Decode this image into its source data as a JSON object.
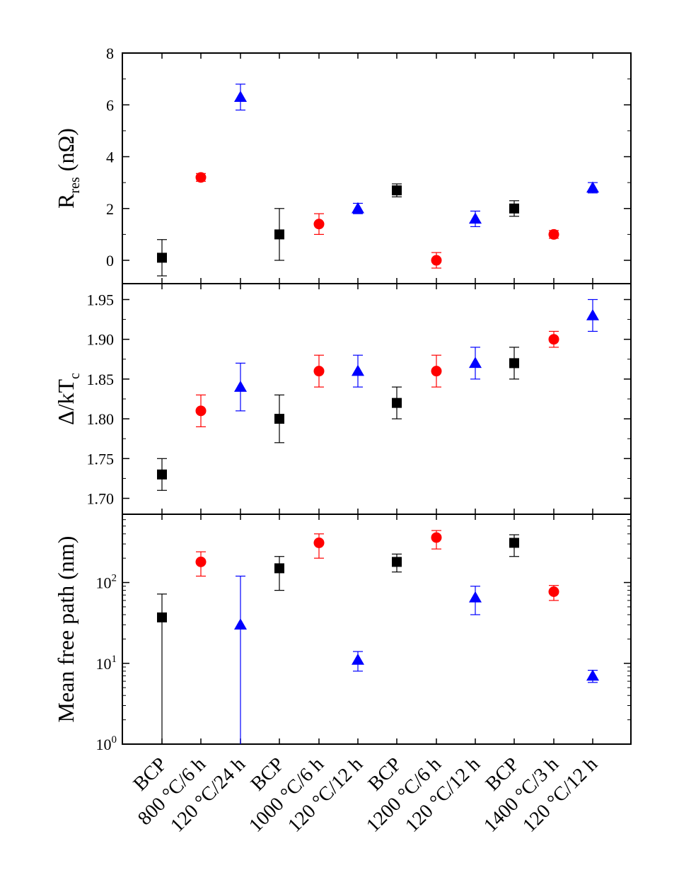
{
  "chart_data": {
    "type": "scatter",
    "categories": [
      "BCP",
      "800 °C/6 h",
      "120 °C/24 h",
      "BCP",
      "1000 °C/6 h",
      "120 °C/12 h",
      "BCP",
      "1200 °C/6 h",
      "120 °C/12 h",
      "BCP",
      "1400 °C/3 h",
      "120 °C/12 h"
    ],
    "marker_colors": {
      "square": "#000000",
      "circle": "#ff0000",
      "triangle": "#0000ff"
    },
    "markers": [
      "square",
      "circle",
      "triangle",
      "square",
      "circle",
      "triangle",
      "square",
      "circle",
      "triangle",
      "square",
      "circle",
      "triangle"
    ],
    "panels": [
      {
        "id": "rres",
        "ylabel_main": "R",
        "ylabel_sub": "res",
        "ylabel_tail": " (nΩ)",
        "scale": "linear",
        "ylim": [
          -0.9,
          8
        ],
        "yticks": [
          0,
          2,
          4,
          6,
          8
        ],
        "ytick_labels": [
          "0",
          "2",
          "4",
          "6",
          "8"
        ],
        "values": [
          0.1,
          3.2,
          6.3,
          1.0,
          1.4,
          2.0,
          2.7,
          0.0,
          1.6,
          2.0,
          1.0,
          2.8
        ],
        "err_low": [
          0.7,
          0.15,
          0.5,
          1.0,
          0.4,
          0.2,
          0.25,
          0.3,
          0.3,
          0.3,
          0.15,
          0.2
        ],
        "err_high": [
          0.7,
          0.15,
          0.5,
          1.0,
          0.4,
          0.2,
          0.25,
          0.3,
          0.3,
          0.3,
          0.15,
          0.2
        ]
      },
      {
        "id": "gap",
        "ylabel_main": "Δ/kT",
        "ylabel_sub": "c",
        "ylabel_tail": "",
        "scale": "linear",
        "ylim": [
          1.68,
          1.97
        ],
        "yticks": [
          1.7,
          1.75,
          1.8,
          1.85,
          1.9,
          1.95
        ],
        "ytick_labels": [
          "1.70",
          "1.75",
          "1.80",
          "1.85",
          "1.90",
          "1.95"
        ],
        "values": [
          1.73,
          1.81,
          1.84,
          1.8,
          1.86,
          1.86,
          1.82,
          1.86,
          1.87,
          1.87,
          1.9,
          1.93
        ],
        "err_low": [
          0.02,
          0.02,
          0.03,
          0.03,
          0.02,
          0.02,
          0.02,
          0.02,
          0.02,
          0.02,
          0.01,
          0.02
        ],
        "err_high": [
          0.02,
          0.02,
          0.03,
          0.03,
          0.02,
          0.02,
          0.02,
          0.02,
          0.02,
          0.02,
          0.01,
          0.02
        ]
      },
      {
        "id": "mfp",
        "ylabel_main": "Mean free path (nm)",
        "ylabel_sub": "",
        "ylabel_tail": "",
        "scale": "log",
        "ylim": [
          1,
          700
        ],
        "yticks": [
          1,
          10,
          100
        ],
        "ytick_labels": [
          "10",
          "10",
          "10"
        ],
        "ytick_exponents": [
          "0",
          "1",
          "2"
        ],
        "values": [
          37,
          180,
          30,
          150,
          310,
          11,
          180,
          360,
          65,
          310,
          77,
          7
        ],
        "err_low": [
          36,
          60,
          29,
          70,
          110,
          3,
          45,
          100,
          25,
          100,
          17,
          1.2
        ],
        "err_high": [
          35,
          60,
          90,
          60,
          90,
          3,
          45,
          80,
          25,
          80,
          15,
          1.2
        ]
      }
    ]
  }
}
